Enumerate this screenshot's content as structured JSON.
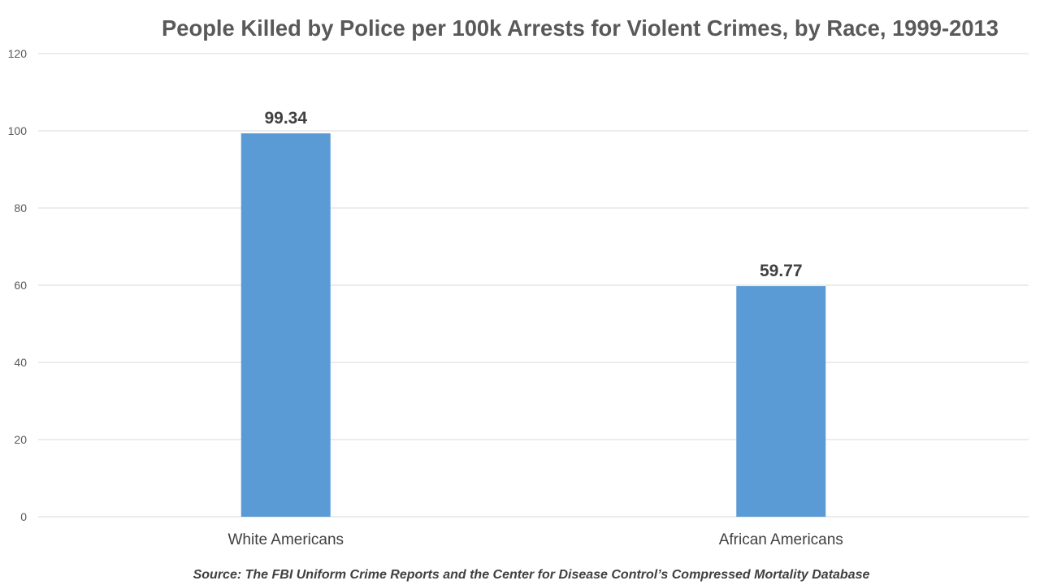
{
  "chart_data": {
    "type": "bar",
    "title": "People Killed by Police per 100k Arrests for Violent Crimes, by Race, 1999-2013",
    "categories": [
      "White Americans",
      "African Americans"
    ],
    "values": [
      99.34,
      59.77
    ],
    "value_labels": [
      "99.34",
      "59.77"
    ],
    "xlabel": "",
    "ylabel": "",
    "ylim": [
      0,
      120
    ],
    "yticks": [
      0,
      20,
      40,
      60,
      80,
      100,
      120
    ],
    "grid": true,
    "legend": "none",
    "bar_color": "#5B9BD5",
    "source": "Source: The FBI Uniform Crime Reports and the Center for Disease Control’s Compressed Mortality Database"
  }
}
